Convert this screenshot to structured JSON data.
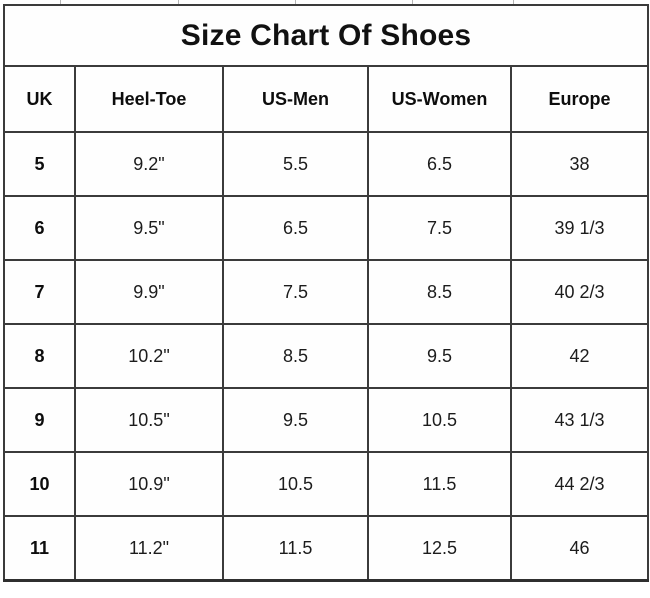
{
  "title": "Size Chart Of Shoes",
  "columns": [
    "UK",
    "Heel-Toe",
    "US-Men",
    "US-Women",
    "Europe"
  ],
  "rows": [
    {
      "uk": "5",
      "heel_toe": "9.2\"",
      "us_men": "5.5",
      "us_women": "6.5",
      "europe": "38"
    },
    {
      "uk": "6",
      "heel_toe": "9.5\"",
      "us_men": "6.5",
      "us_women": "7.5",
      "europe": "39 1/3"
    },
    {
      "uk": "7",
      "heel_toe": "9.9\"",
      "us_men": "7.5",
      "us_women": "8.5",
      "europe": "40 2/3"
    },
    {
      "uk": "8",
      "heel_toe": "10.2\"",
      "us_men": "8.5",
      "us_women": "9.5",
      "europe": "42"
    },
    {
      "uk": "9",
      "heel_toe": "10.5\"",
      "us_men": "9.5",
      "us_women": "10.5",
      "europe": "43 1/3"
    },
    {
      "uk": "10",
      "heel_toe": "10.9\"",
      "us_men": "10.5",
      "us_women": "11.5",
      "europe": "44 2/3"
    },
    {
      "uk": "11",
      "heel_toe": "11.2\"",
      "us_men": "11.5",
      "us_women": "12.5",
      "europe": "46"
    }
  ],
  "colors": {
    "border": "#3b3b3b",
    "text": "#1c1c1c",
    "background": "#ffffff"
  },
  "chart_data": {
    "type": "table",
    "title": "Size Chart Of Shoes",
    "columns": [
      "UK",
      "Heel-Toe",
      "US-Men",
      "US-Women",
      "Europe"
    ],
    "rows": [
      [
        "5",
        "9.2\"",
        "5.5",
        "6.5",
        "38"
      ],
      [
        "6",
        "9.5\"",
        "6.5",
        "7.5",
        "39 1/3"
      ],
      [
        "7",
        "9.9\"",
        "7.5",
        "8.5",
        "40 2/3"
      ],
      [
        "8",
        "10.2\"",
        "8.5",
        "9.5",
        "42"
      ],
      [
        "9",
        "10.5\"",
        "9.5",
        "10.5",
        "43 1/3"
      ],
      [
        "10",
        "10.9\"",
        "10.5",
        "11.5",
        "44 2/3"
      ],
      [
        "11",
        "11.2\"",
        "11.5",
        "12.5",
        "46"
      ]
    ]
  }
}
